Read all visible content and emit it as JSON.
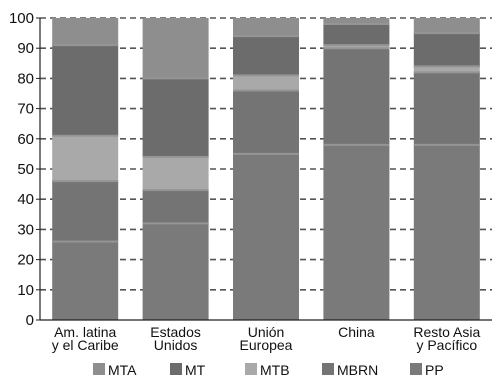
{
  "chart_data": {
    "type": "bar",
    "stacked": true,
    "categories": [
      [
        "Am. latina",
        "y el Caribe"
      ],
      [
        "Estados",
        "Unidos"
      ],
      [
        "Unión",
        "Europea"
      ],
      [
        "China"
      ],
      [
        "Resto Asia",
        "y Pacífico"
      ]
    ],
    "series": [
      {
        "name": "PP",
        "values": [
          26,
          32,
          55,
          58,
          58
        ],
        "color": "#7a7a7a"
      },
      {
        "name": "MBRN",
        "values": [
          20,
          11,
          21,
          32,
          24
        ],
        "color": "#747474"
      },
      {
        "name": "MTB",
        "values": [
          15,
          11,
          5,
          1,
          2
        ],
        "color": "#a9a9a9"
      },
      {
        "name": "MT",
        "values": [
          30,
          26,
          13,
          7,
          11
        ],
        "color": "#6c6c6c"
      },
      {
        "name": "MTA",
        "values": [
          9,
          20,
          6,
          2,
          5
        ],
        "color": "#8e8e8e"
      }
    ],
    "legend_order": [
      "MTA",
      "MT",
      "MTB",
      "MBRN",
      "PP"
    ],
    "y_ticks": [
      0,
      10,
      20,
      30,
      40,
      50,
      60,
      70,
      80,
      90,
      100
    ],
    "ylim": [
      0,
      100
    ],
    "title": "",
    "xlabel": "",
    "ylabel": "",
    "grid": true,
    "legend_position": "bottom"
  }
}
